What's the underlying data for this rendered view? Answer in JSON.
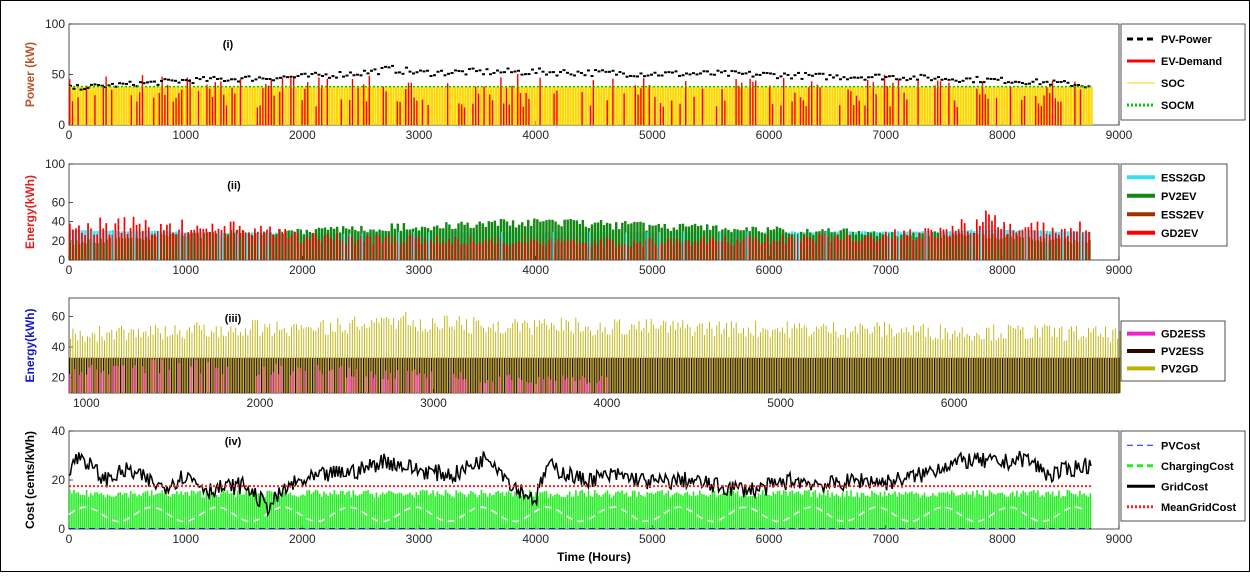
{
  "chart_data": [
    {
      "type": "bar",
      "panel_label": "(i)",
      "ylabel": "Power (kW)",
      "xlim": [
        0,
        9000
      ],
      "ylim": [
        0,
        100
      ],
      "xticks": [
        0,
        1000,
        2000,
        3000,
        4000,
        5000,
        6000,
        7000,
        8000,
        9000
      ],
      "yticks": [
        0,
        50,
        100
      ],
      "legend_position": "top-right outside",
      "series": [
        {
          "name": "PV-Power",
          "color": "#000000",
          "style": "dashed",
          "x": [
            0,
            500,
            1000,
            1500,
            2000,
            2500,
            2750,
            3000,
            3500,
            4000,
            4500,
            5000,
            5500,
            6000,
            6500,
            7000,
            7500,
            8000,
            8500,
            8760
          ],
          "values": [
            40,
            44,
            48,
            50,
            52,
            56,
            60,
            56,
            57,
            57,
            56,
            55,
            55,
            54,
            52,
            52,
            50,
            48,
            45,
            42
          ]
        },
        {
          "name": "EV-Demand",
          "color": "#ff0000",
          "style": "solid",
          "x": [
            0,
            500,
            1000,
            1500,
            2000,
            2500,
            3000,
            3500,
            4000,
            4500,
            5000,
            5500,
            6000,
            6500,
            7000,
            7500,
            8000,
            8500,
            8760
          ],
          "values": [
            48,
            52,
            50,
            48,
            50,
            49,
            50,
            48,
            52,
            48,
            50,
            49,
            48,
            50,
            50,
            48,
            52,
            48,
            46
          ]
        },
        {
          "name": "SOC",
          "color": "#ffd700",
          "style": "solid",
          "x": [
            0,
            8760
          ],
          "values": [
            38,
            38
          ]
        },
        {
          "name": "SOCM",
          "color": "#00cc00",
          "style": "dotted",
          "x": [
            0,
            8760
          ],
          "values": [
            38,
            38
          ]
        }
      ]
    },
    {
      "type": "bar",
      "panel_label": "(ii)",
      "ylabel": "Energy(kWh)",
      "xlim": [
        0,
        9000
      ],
      "ylim": [
        0,
        100
      ],
      "xticks": [
        0,
        1000,
        2000,
        3000,
        4000,
        5000,
        6000,
        7000,
        8000,
        9000
      ],
      "yticks": [
        0,
        20,
        40,
        60,
        100
      ],
      "legend_position": "top-right outside",
      "series": [
        {
          "name": "ESS2GD",
          "color": "#33e0f0",
          "x": [
            0,
            1000,
            2000,
            3000,
            4000,
            5000,
            6000,
            7000,
            8000,
            8760
          ],
          "values": [
            32,
            30,
            28,
            30,
            30,
            30,
            30,
            30,
            32,
            30
          ]
        },
        {
          "name": "PV2EV",
          "color": "#118811",
          "x": [
            0,
            1000,
            2000,
            3000,
            4000,
            5000,
            6000,
            7000,
            8000,
            8760
          ],
          "values": [
            20,
            28,
            33,
            38,
            42,
            38,
            34,
            30,
            26,
            20
          ]
        },
        {
          "name": "ESS2EV",
          "color": "#a03000",
          "x": [
            0,
            1000,
            2000,
            3000,
            4000,
            5000,
            6000,
            7000,
            8000,
            8760
          ],
          "values": [
            20,
            22,
            22,
            24,
            26,
            24,
            22,
            22,
            20,
            20
          ]
        },
        {
          "name": "GD2EV",
          "color": "#ff0000",
          "x": [
            0,
            500,
            1000,
            1500,
            2000,
            3000,
            4000,
            5000,
            6000,
            7000,
            7500,
            7850,
            8000,
            8500,
            8760
          ],
          "values": [
            42,
            44,
            40,
            38,
            28,
            25,
            22,
            22,
            25,
            30,
            36,
            50,
            40,
            40,
            38
          ]
        }
      ]
    },
    {
      "type": "bar",
      "panel_label": "(iii)",
      "ylabel": "Energy(kWh)",
      "xlim": [
        900,
        6950
      ],
      "ylim": [
        10,
        72
      ],
      "xticks": [
        1000,
        2000,
        3000,
        4000,
        5000,
        6000
      ],
      "yticks": [
        20,
        40,
        60
      ],
      "legend_position": "right outside",
      "series": [
        {
          "name": "GD2ESS",
          "color": "#ee22cc",
          "x": [
            900,
            1500,
            2000,
            2500,
            3000,
            3500,
            4000,
            4100,
            6000,
            6300
          ],
          "values": [
            30,
            33,
            30,
            28,
            25,
            22,
            22,
            0,
            25,
            0
          ]
        },
        {
          "name": "PV2ESS",
          "color": "#2a0a00",
          "x": [
            900,
            2000,
            3000,
            4100,
            5000,
            6000,
            6950
          ],
          "values": [
            33,
            33,
            33,
            33,
            33,
            33,
            33
          ]
        },
        {
          "name": "PV2GD",
          "color": "#bdb200",
          "x": [
            900,
            1500,
            2000,
            2500,
            2750,
            3000,
            3500,
            4000,
            4500,
            5000,
            5500,
            6000,
            6500,
            6950
          ],
          "values": [
            52,
            55,
            57,
            58,
            63,
            60,
            58,
            58,
            57,
            56,
            56,
            54,
            54,
            52
          ]
        }
      ]
    },
    {
      "type": "line",
      "panel_label": "(iv)",
      "ylabel": "Cost (cents/kWh)",
      "xlabel": "Time (Hours)",
      "xlim": [
        0,
        9000
      ],
      "ylim": [
        0,
        40
      ],
      "xticks": [
        0,
        1000,
        2000,
        3000,
        4000,
        5000,
        6000,
        7000,
        8000,
        9000
      ],
      "yticks": [
        0,
        20,
        40
      ],
      "legend_position": "top-right outside",
      "series": [
        {
          "name": "PVCost",
          "color": "#1a1aff",
          "style": "dashed",
          "x": [
            0,
            8760
          ],
          "values": [
            0,
            0
          ]
        },
        {
          "name": "ChargingCost",
          "color": "#22ee22",
          "style": "dashed",
          "x": [
            0,
            8760
          ],
          "values": [
            16,
            16
          ]
        },
        {
          "name": "GridCost",
          "color": "#000000",
          "style": "solid",
          "x": [
            0,
            100,
            300,
            500,
            800,
            1000,
            1200,
            1500,
            1700,
            1900,
            2200,
            2500,
            2700,
            3000,
            3300,
            3600,
            3800,
            4000,
            4100,
            4400,
            4700,
            5000,
            5300,
            5600,
            5900,
            6200,
            6500,
            6800,
            7000,
            7300,
            7500,
            7700,
            8000,
            8200,
            8400,
            8700
          ],
          "values": [
            25,
            30,
            20,
            24,
            17,
            22,
            16,
            18,
            9,
            18,
            22,
            24,
            28,
            24,
            22,
            30,
            18,
            12,
            26,
            20,
            22,
            19,
            20,
            17,
            16,
            20,
            18,
            20,
            19,
            22,
            26,
            28,
            27,
            29,
            22,
            26
          ]
        },
        {
          "name": "MeanGridCost",
          "color": "#ff2222",
          "style": "dotted",
          "x": [
            0,
            8760
          ],
          "values": [
            17.5,
            17.5
          ]
        }
      ]
    }
  ]
}
